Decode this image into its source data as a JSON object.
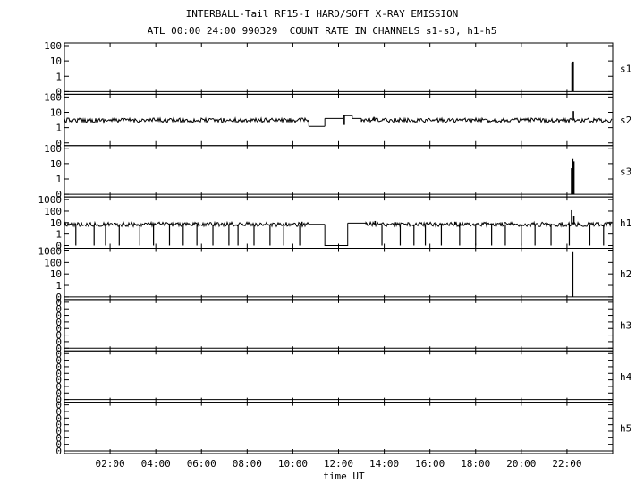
{
  "header": {
    "title": "INTERBALL-Tail RF15-I HARD/SOFT X-RAY EMISSION",
    "subtitle": "ATL 00:00 24:00 990329  COUNT RATE IN CHANNELS s1-s3, h1-h5"
  },
  "chart_data": {
    "type": "line",
    "title": "INTERBALL-Tail RF15-I HARD/SOFT X-RAY EMISSION",
    "subtitle": "ATL 00:00 24:00 990329  COUNT RATE IN CHANNELS s1-s3, h1-h5",
    "xlabel": "time UT",
    "x_tick_labels": [
      "02:00",
      "04:00",
      "06:00",
      "08:00",
      "10:00",
      "12:00",
      "14:00",
      "16:00",
      "18:00",
      "20:00",
      "22:00"
    ],
    "x_ticks": [
      2,
      4,
      6,
      8,
      10,
      12,
      14,
      16,
      18,
      20,
      22
    ],
    "xlim": [
      0,
      24
    ],
    "y_scale": "log",
    "grid": false,
    "panels": [
      {
        "name": "s1",
        "y_tick_labels": [
          "100",
          "10",
          "1",
          "0"
        ],
        "baseline": 0,
        "segments": [],
        "spikes": [
          [
            22.22,
            8
          ],
          [
            22.27,
            9
          ]
        ],
        "dips": []
      },
      {
        "name": "s2",
        "y_tick_labels": [
          "100",
          "10",
          "1",
          "0"
        ],
        "baseline": 0,
        "segments": [
          {
            "from": 0.0,
            "to": 10.7,
            "level": 3,
            "noisy": true
          },
          {
            "from": 10.7,
            "to": 11.4,
            "level": 1.2,
            "noisy": false
          },
          {
            "from": 11.4,
            "to": 12.2,
            "level": 4,
            "noisy": false
          },
          {
            "from": 12.2,
            "to": 12.6,
            "level": 6,
            "noisy": false
          },
          {
            "from": 12.6,
            "to": 13.0,
            "level": 4,
            "noisy": false
          },
          {
            "from": 13.0,
            "to": 24.0,
            "level": 3,
            "noisy": true
          }
        ],
        "spikes": [
          [
            12.25,
            1.5
          ],
          [
            13.55,
            5
          ],
          [
            22.28,
            12
          ]
        ],
        "dips": []
      },
      {
        "name": "s3",
        "y_tick_labels": [
          "100",
          "10",
          "1",
          "0"
        ],
        "baseline": 0,
        "segments": [],
        "spikes": [
          [
            22.2,
            5
          ],
          [
            22.25,
            20
          ],
          [
            22.3,
            14
          ]
        ],
        "dips": []
      },
      {
        "name": "h1",
        "y_tick_labels": [
          "1000",
          "100",
          "10",
          "1",
          "0"
        ],
        "baseline": 0,
        "segments": [
          {
            "from": 0.0,
            "to": 10.7,
            "level": 7,
            "noisy": true
          },
          {
            "from": 10.7,
            "to": 11.4,
            "level": 7,
            "noisy": false
          },
          {
            "from": 12.4,
            "to": 13.2,
            "level": 9,
            "noisy": false
          },
          {
            "from": 13.2,
            "to": 24.0,
            "level": 7,
            "noisy": true
          }
        ],
        "spikes": [
          [
            10.4,
            12
          ],
          [
            13.6,
            14
          ],
          [
            17.1,
            12
          ],
          [
            22.2,
            120
          ],
          [
            22.3,
            40
          ]
        ],
        "dips": [
          0.5,
          1.3,
          1.8,
          2.4,
          3.3,
          3.9,
          4.6,
          5.2,
          5.8,
          6.5,
          7.2,
          7.6,
          8.3,
          9.0,
          9.6,
          10.3,
          11.5,
          12.3,
          13.9,
          14.7,
          15.3,
          15.8,
          16.5,
          17.3,
          18.0,
          18.7,
          19.3,
          20.0,
          20.6,
          21.3,
          22.1,
          23.0,
          23.6
        ]
      },
      {
        "name": "h2",
        "y_tick_labels": [
          "1000",
          "100",
          "10",
          "1",
          "0"
        ],
        "baseline": 0,
        "segments": [],
        "spikes": [
          [
            22.25,
            800
          ]
        ],
        "dips": []
      },
      {
        "name": "h3",
        "y_tick_labels": [
          "0",
          "0",
          "0",
          "0",
          "0",
          "0",
          "0",
          "0"
        ],
        "baseline": 0,
        "segments": [],
        "spikes": [],
        "dips": []
      },
      {
        "name": "h4",
        "y_tick_labels": [
          "0",
          "0",
          "0",
          "0",
          "0",
          "0",
          "0",
          "0"
        ],
        "baseline": 0,
        "segments": [],
        "spikes": [],
        "dips": []
      },
      {
        "name": "h5",
        "y_tick_labels": [
          "0",
          "0",
          "0",
          "0",
          "0",
          "0",
          "0",
          "0"
        ],
        "baseline": 0,
        "segments": [],
        "spikes": [],
        "dips": []
      }
    ]
  }
}
